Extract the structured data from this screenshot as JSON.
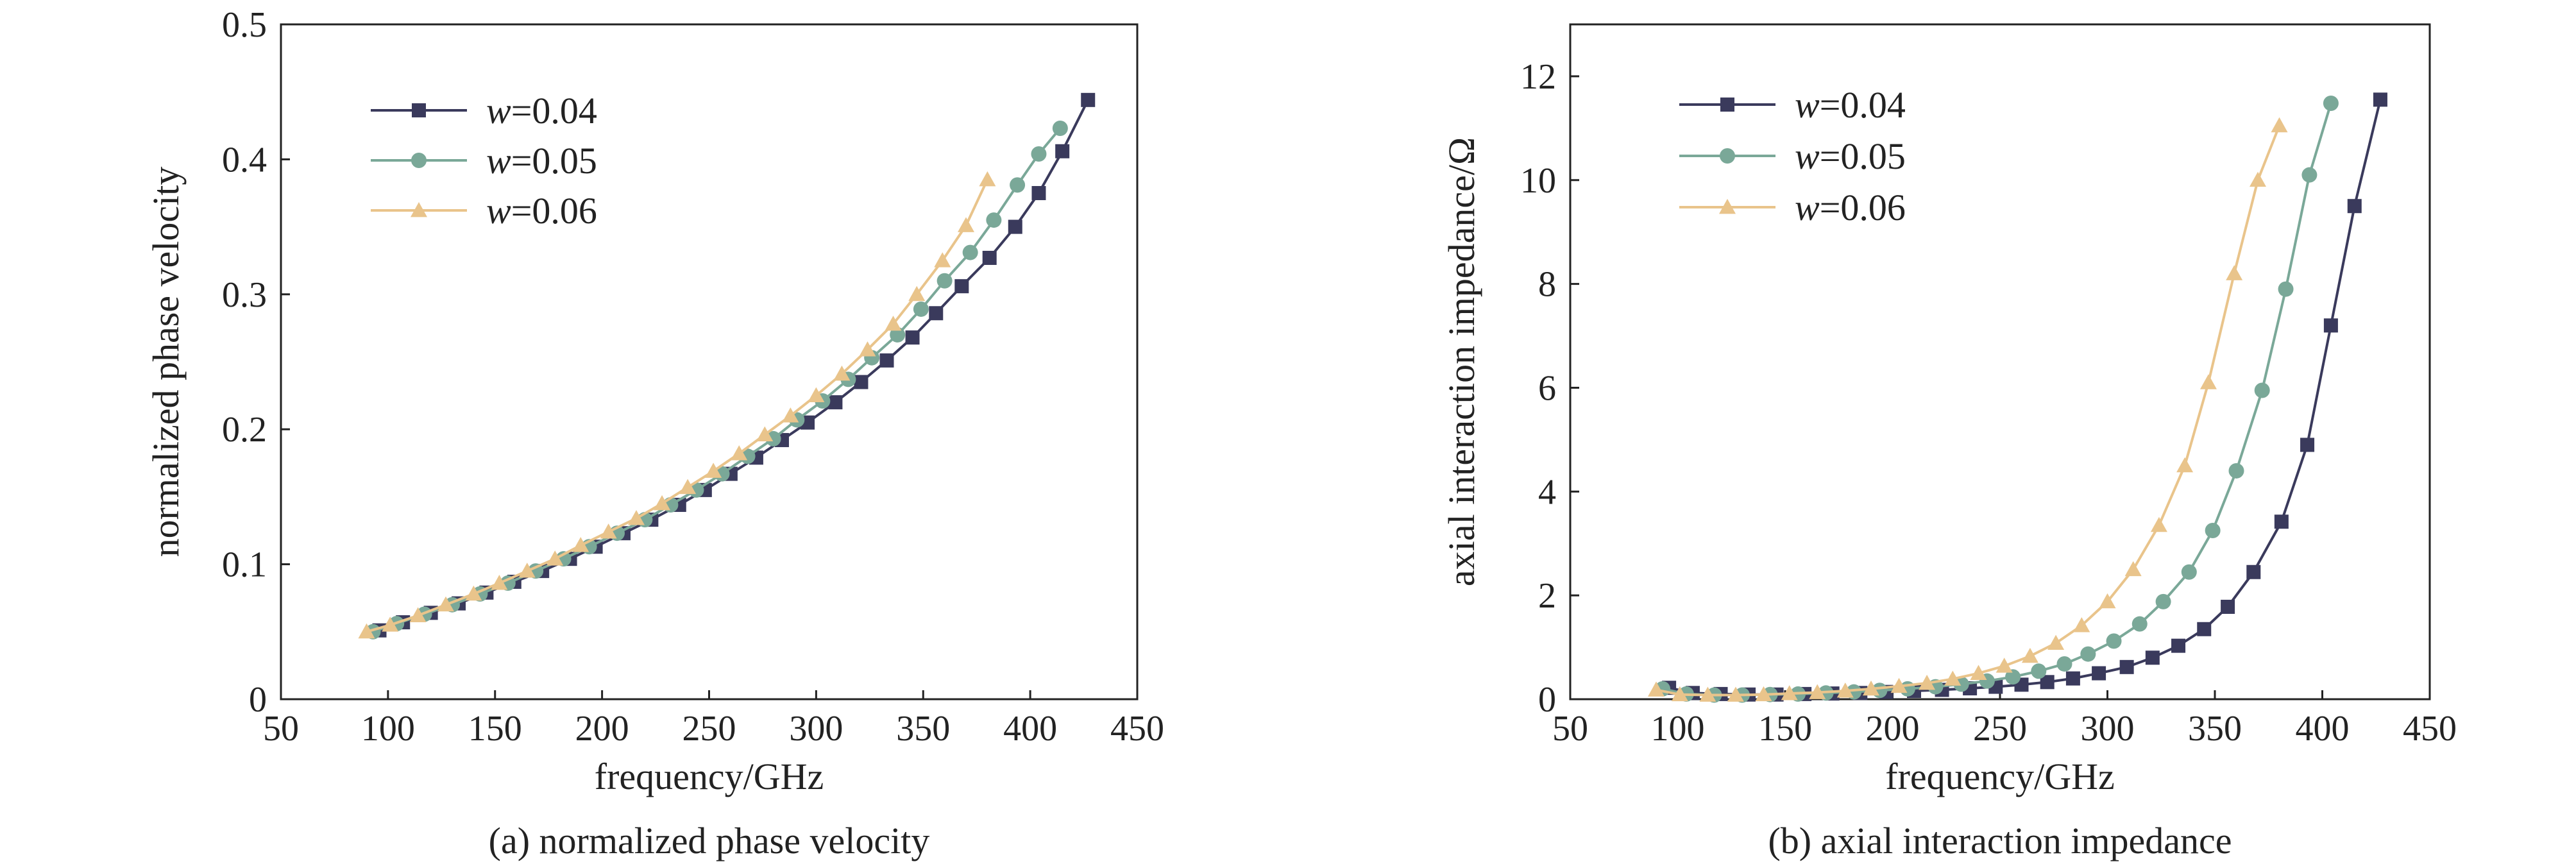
{
  "panels": [
    {
      "caption": "(a) normalized phase velocity",
      "chart_data": {
        "type": "line",
        "title": "",
        "xlabel": "frequency/GHz",
        "ylabel": "normalized phase velocity",
        "xlim": [
          50,
          450
        ],
        "ylim": [
          0,
          0.5
        ],
        "xticks": [
          50,
          100,
          150,
          200,
          250,
          300,
          350,
          400,
          450
        ],
        "yticks": [
          0,
          0.1,
          0.2,
          0.3,
          0.4,
          0.5
        ],
        "xtick_labels": [
          "50",
          "100",
          "150",
          "200",
          "250",
          "300",
          "350",
          "400",
          "450"
        ],
        "ytick_labels": [
          "0",
          "0.1",
          "0.2",
          "0.3",
          "0.4",
          "0.5"
        ],
        "grid": false,
        "legend_position": "top-left",
        "series": [
          {
            "name_var": "w",
            "name_val": "=0.04",
            "color": "#3a3a5c",
            "marker": "square",
            "x": [
              96,
              107,
              120,
              133,
              146,
              159,
              172,
              185,
              197,
              210,
              223,
              236,
              248,
              260,
              272,
              284,
              296,
              309,
              321,
              333,
              345,
              356,
              368,
              381,
              393,
              404,
              415,
              427
            ],
            "y": [
              0.051,
              0.057,
              0.064,
              0.071,
              0.079,
              0.087,
              0.095,
              0.104,
              0.113,
              0.123,
              0.133,
              0.144,
              0.155,
              0.167,
              0.179,
              0.192,
              0.205,
              0.22,
              0.235,
              0.251,
              0.268,
              0.286,
              0.306,
              0.327,
              0.35,
              0.375,
              0.406,
              0.444
            ]
          },
          {
            "name_var": "w",
            "name_val": "=0.05",
            "color": "#7aa898",
            "marker": "circle",
            "x": [
              93,
              104,
              117,
              130,
              143,
              156,
              169,
              182,
              194,
              207,
              220,
              232,
              244,
              256,
              268,
              280,
              291,
              303,
              315,
              326,
              338,
              349,
              360,
              372,
              383,
              394,
              404,
              414
            ],
            "y": [
              0.05,
              0.056,
              0.063,
              0.07,
              0.078,
              0.086,
              0.095,
              0.104,
              0.113,
              0.123,
              0.133,
              0.144,
              0.155,
              0.167,
              0.18,
              0.193,
              0.207,
              0.221,
              0.237,
              0.253,
              0.27,
              0.289,
              0.31,
              0.331,
              0.355,
              0.381,
              0.404,
              0.423
            ]
          },
          {
            "name_var": "w",
            "name_val": "=0.06",
            "color": "#e9c48b",
            "marker": "triangle",
            "x": [
              90,
              101,
              114,
              127,
              140,
              152,
              165,
              178,
              190,
              203,
              216,
              228,
              240,
              252,
              264,
              276,
              288,
              300,
              312,
              324,
              336,
              347,
              359,
              370,
              380
            ],
            "y": [
              0.05,
              0.055,
              0.062,
              0.07,
              0.078,
              0.086,
              0.095,
              0.104,
              0.114,
              0.124,
              0.134,
              0.145,
              0.157,
              0.169,
              0.182,
              0.196,
              0.21,
              0.225,
              0.241,
              0.259,
              0.278,
              0.3,
              0.325,
              0.351,
              0.385
            ]
          }
        ]
      }
    },
    {
      "caption": "(b) axial interaction impedance",
      "chart_data": {
        "type": "line",
        "title": "",
        "xlabel": "frequency/GHz",
        "ylabel": "axial interaction impedance/Ω",
        "xlim": [
          50,
          450
        ],
        "ylim": [
          0,
          13
        ],
        "xticks": [
          50,
          100,
          150,
          200,
          250,
          300,
          350,
          400,
          450
        ],
        "yticks": [
          0,
          2,
          4,
          6,
          8,
          10,
          12
        ],
        "xtick_labels": [
          "50",
          "100",
          "150",
          "200",
          "250",
          "300",
          "350",
          "400",
          "450"
        ],
        "ytick_labels": [
          "0",
          "2",
          "4",
          "6",
          "8",
          "10",
          "12"
        ],
        "grid": false,
        "legend_position": "top-left",
        "series": [
          {
            "name_var": "w",
            "name_val": "=0.04",
            "color": "#3a3a5c",
            "marker": "square",
            "x": [
              96,
              107,
              120,
              133,
              146,
              159,
              172,
              185,
              197,
              210,
              223,
              236,
              248,
              260,
              272,
              284,
              296,
              309,
              321,
              333,
              345,
              356,
              368,
              381,
              393,
              404,
              415,
              427
            ],
            "y": [
              0.22,
              0.12,
              0.1,
              0.09,
              0.09,
              0.1,
              0.11,
              0.12,
              0.14,
              0.16,
              0.18,
              0.21,
              0.24,
              0.28,
              0.33,
              0.4,
              0.5,
              0.62,
              0.8,
              1.03,
              1.35,
              1.78,
              2.45,
              3.42,
              4.9,
              7.2,
              9.5,
              11.55
            ]
          },
          {
            "name_var": "w",
            "name_val": "=0.05",
            "color": "#7aa898",
            "marker": "circle",
            "x": [
              93,
              104,
              117,
              130,
              143,
              156,
              169,
              182,
              194,
              207,
              220,
              232,
              244,
              256,
              268,
              280,
              291,
              303,
              315,
              326,
              338,
              349,
              360,
              372,
              383,
              394,
              404
            ],
            "y": [
              0.2,
              0.1,
              0.08,
              0.08,
              0.09,
              0.1,
              0.12,
              0.14,
              0.17,
              0.2,
              0.24,
              0.29,
              0.35,
              0.43,
              0.54,
              0.68,
              0.87,
              1.12,
              1.45,
              1.88,
              2.45,
              3.25,
              4.4,
              5.95,
              7.9,
              10.1,
              11.48
            ]
          },
          {
            "name_var": "w",
            "name_val": "=0.06",
            "color": "#e9c48b",
            "marker": "triangle",
            "x": [
              90,
              101,
              114,
              127,
              140,
              152,
              165,
              178,
              190,
              203,
              216,
              228,
              240,
              252,
              264,
              276,
              288,
              300,
              312,
              324,
              336,
              347,
              359,
              370,
              380
            ],
            "y": [
              0.18,
              0.09,
              0.08,
              0.08,
              0.09,
              0.11,
              0.13,
              0.16,
              0.2,
              0.25,
              0.31,
              0.39,
              0.5,
              0.64,
              0.83,
              1.08,
              1.42,
              1.88,
              2.5,
              3.35,
              4.5,
              6.1,
              8.2,
              10.0,
              11.05
            ]
          }
        ]
      }
    }
  ]
}
